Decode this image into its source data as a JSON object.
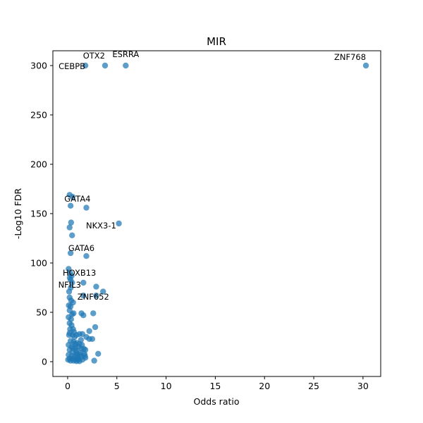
{
  "chart_data": {
    "type": "scatter",
    "title": "MIR",
    "xlabel": "Odds ratio",
    "ylabel": "-Log10 FDR",
    "xlim": [
      -1.5,
      31.8
    ],
    "ylim": [
      -15,
      315
    ],
    "xticks": [
      0,
      5,
      10,
      15,
      20,
      25,
      30
    ],
    "yticks": [
      0,
      50,
      100,
      150,
      200,
      250,
      300
    ],
    "grid": false,
    "point_color": "#1f77b4",
    "points": [
      [
        30.3,
        300
      ],
      [
        5.9,
        300
      ],
      [
        3.8,
        300
      ],
      [
        1.8,
        300
      ],
      [
        0.2,
        169
      ],
      [
        0.5,
        167
      ],
      [
        0.3,
        158
      ],
      [
        1.9,
        156
      ],
      [
        5.2,
        140
      ],
      [
        0.35,
        141
      ],
      [
        0.2,
        136
      ],
      [
        0.45,
        128
      ],
      [
        0.3,
        110
      ],
      [
        1.9,
        107
      ],
      [
        0.1,
        94
      ],
      [
        0.25,
        90
      ],
      [
        0.4,
        87
      ],
      [
        0.3,
        83
      ],
      [
        0.45,
        80
      ],
      [
        1.6,
        80
      ],
      [
        2.9,
        76
      ],
      [
        0.15,
        71
      ],
      [
        3.6,
        71
      ],
      [
        1.6,
        67
      ],
      [
        2.9,
        67
      ],
      [
        0.2,
        65
      ],
      [
        0.35,
        62
      ],
      [
        0.55,
        60
      ],
      [
        0.3,
        56
      ],
      [
        0.2,
        52
      ],
      [
        0.6,
        49
      ],
      [
        1.4,
        49
      ],
      [
        2.6,
        49
      ],
      [
        1.6,
        47
      ],
      [
        0.1,
        45
      ],
      [
        0.2,
        39
      ],
      [
        0.4,
        37
      ],
      [
        0.55,
        33
      ],
      [
        2.8,
        35
      ],
      [
        2.2,
        31
      ],
      [
        0.2,
        29
      ],
      [
        0.5,
        27
      ],
      [
        0.7,
        25
      ],
      [
        0.9,
        27
      ],
      [
        1.2,
        28
      ],
      [
        1.5,
        28
      ],
      [
        1.9,
        25
      ],
      [
        2.2,
        23
      ],
      [
        2.5,
        23
      ],
      [
        0.3,
        21
      ],
      [
        0.6,
        20
      ],
      [
        0.9,
        19
      ],
      [
        1.2,
        18
      ],
      [
        0.1,
        17
      ],
      [
        0.4,
        15
      ],
      [
        0.8,
        14
      ],
      [
        1.1,
        15
      ],
      [
        1.4,
        13
      ],
      [
        1.8,
        12
      ],
      [
        0.2,
        12
      ],
      [
        0.5,
        10
      ],
      [
        0.9,
        9
      ],
      [
        1.3,
        9
      ],
      [
        1.7,
        8
      ],
      [
        3.1,
        8
      ],
      [
        0.1,
        7
      ],
      [
        0.4,
        6
      ],
      [
        0.7,
        5
      ],
      [
        1.0,
        5
      ],
      [
        1.4,
        5
      ],
      [
        1.8,
        4
      ],
      [
        0.2,
        3
      ],
      [
        0.5,
        3
      ],
      [
        0.8,
        2
      ],
      [
        1.1,
        2
      ],
      [
        1.5,
        2
      ],
      [
        0.3,
        1
      ],
      [
        0.6,
        1
      ],
      [
        0.9,
        0.5
      ],
      [
        1.2,
        0.5
      ],
      [
        2.7,
        1
      ],
      [
        0.05,
        2
      ],
      [
        0.15,
        27
      ],
      [
        0.25,
        33
      ],
      [
        0.35,
        43
      ],
      [
        0.45,
        48
      ],
      [
        0.65,
        30
      ],
      [
        0.75,
        18
      ],
      [
        0.85,
        11
      ],
      [
        0.95,
        7
      ],
      [
        1.05,
        3
      ],
      [
        1.25,
        7
      ],
      [
        1.35,
        22
      ],
      [
        1.45,
        17
      ],
      [
        1.65,
        13
      ],
      [
        1.75,
        6
      ],
      [
        0.55,
        14
      ],
      [
        0.12,
        57
      ],
      [
        0.22,
        85
      ],
      [
        0.32,
        75
      ]
    ],
    "annotations": [
      {
        "label": "ZNF768",
        "x": 30.3,
        "y": 300,
        "ha": "right",
        "dy": -8
      },
      {
        "label": "ESRRA",
        "x": 5.9,
        "y": 300,
        "ha": "middle",
        "dy": -12
      },
      {
        "label": "OTX2",
        "x": 3.8,
        "y": 300,
        "ha": "right",
        "dy": -10
      },
      {
        "label": "CEBPB",
        "x": 1.8,
        "y": 300,
        "ha": "right",
        "dy": 5
      },
      {
        "label": "GATA4",
        "x": 1.0,
        "y": 162,
        "ha": "middle",
        "dy": 0
      },
      {
        "label": "NKX3-1",
        "x": 3.4,
        "y": 135,
        "ha": "middle",
        "dy": 0
      },
      {
        "label": "GATA6",
        "x": 1.4,
        "y": 112,
        "ha": "middle",
        "dy": 0
      },
      {
        "label": "HOXB13",
        "x": 1.2,
        "y": 87,
        "ha": "middle",
        "dy": 0
      },
      {
        "label": "NFIL3",
        "x": 0.2,
        "y": 75,
        "ha": "middle",
        "dy": 0
      },
      {
        "label": "ZNF652",
        "x": 2.6,
        "y": 63,
        "ha": "middle",
        "dy": 0
      }
    ]
  }
}
